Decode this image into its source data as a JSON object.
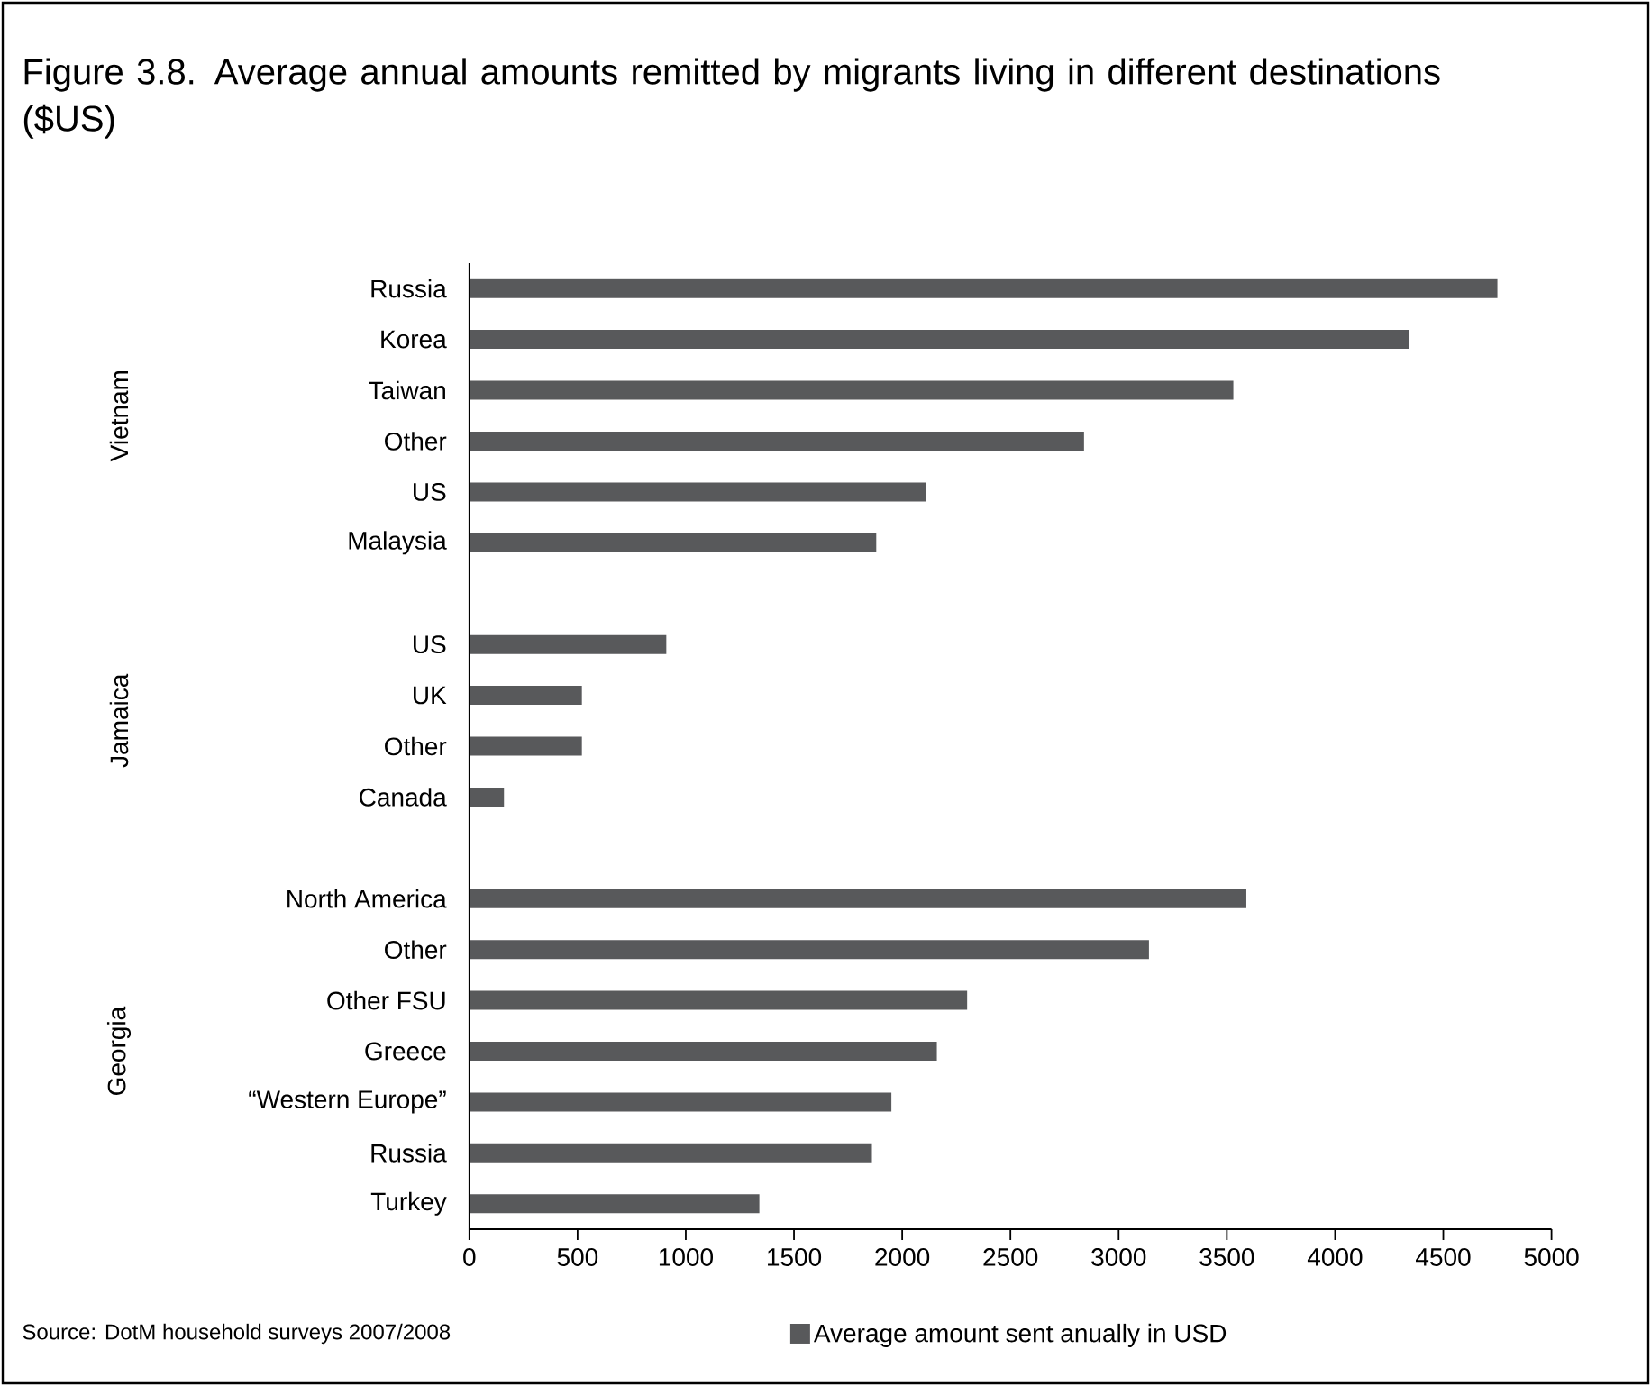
{
  "chart_data": {
    "type": "bar",
    "orientation": "horizontal",
    "title": "Figure 3.8. Average annual amounts remitted by migrants living in different destinations ($US)",
    "categories": [
      "Russia",
      "Korea",
      "Taiwan",
      "Other",
      "US",
      "Malaysia",
      null,
      "US",
      "UK",
      "Other",
      "Canada",
      null,
      "North America",
      "Other",
      "Other FSU",
      "Greece",
      "“Western Europe”",
      "Russia",
      "Turkey"
    ],
    "series": [
      {
        "name": "Average amount sent anually in USD",
        "color": "#58595b",
        "values": [
          4750,
          4340,
          3530,
          2840,
          2110,
          1880,
          null,
          910,
          520,
          520,
          160,
          null,
          3590,
          3140,
          2300,
          2160,
          1950,
          1860,
          1340
        ]
      }
    ],
    "xlim": [
      0,
      5000
    ],
    "xticks": [
      0,
      500,
      1000,
      1500,
      2000,
      2500,
      3000,
      3500,
      4000,
      4500,
      5000
    ],
    "legend": "bottom",
    "grid": false,
    "annotations": [
      "Vietnam",
      "Jamaica",
      "Georgia",
      "Source: DotM household surveys 2007/2008"
    ]
  }
}
